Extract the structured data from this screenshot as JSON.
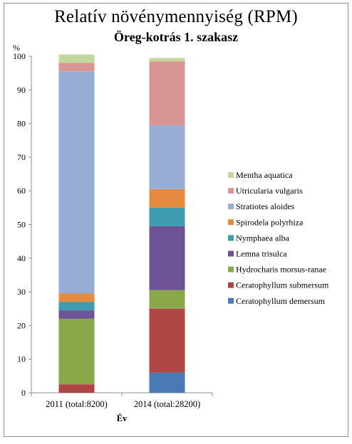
{
  "chart_data": {
    "type": "bar",
    "stacked": true,
    "title": "Relatív növénymennyiség (RPM)",
    "subtitle": "Öreg-kotrás 1. szakasz",
    "xlabel": "Év",
    "ylabel": "%",
    "ylim": [
      0,
      100
    ],
    "yticks": [
      "0",
      "10",
      "20",
      "30",
      "40",
      "50",
      "60",
      "70",
      "80",
      "90",
      "100"
    ],
    "categories": [
      "2011 (total:8200)",
      "2014 (total:28200)"
    ],
    "legend_position": "right",
    "series": [
      {
        "name": "Ceratophyllum demersum",
        "color": "#4a7ab5",
        "values": [
          0,
          6
        ]
      },
      {
        "name": "Ceratophyllum submersum",
        "color": "#b04545",
        "values": [
          2.5,
          19
        ]
      },
      {
        "name": "Hydrocharis morsus-ranae",
        "color": "#8aa84a",
        "values": [
          19.5,
          5.5
        ]
      },
      {
        "name": "Lemna trisulca",
        "color": "#6e5496",
        "values": [
          2.5,
          19
        ]
      },
      {
        "name": "Nymphaea alba",
        "color": "#3e9bb0",
        "values": [
          2.5,
          5.5
        ]
      },
      {
        "name": "Spirodela polyrhiza",
        "color": "#e58b3f",
        "values": [
          2.5,
          5.5
        ]
      },
      {
        "name": "Stratiotes aloides",
        "color": "#97add6",
        "values": [
          66,
          19
        ]
      },
      {
        "name": "Utricularia vulgaris",
        "color": "#d99594",
        "values": [
          2.5,
          19
        ]
      },
      {
        "name": "Mentha aquatica",
        "color": "#c3d69b",
        "values": [
          2.5,
          1
        ]
      }
    ]
  }
}
